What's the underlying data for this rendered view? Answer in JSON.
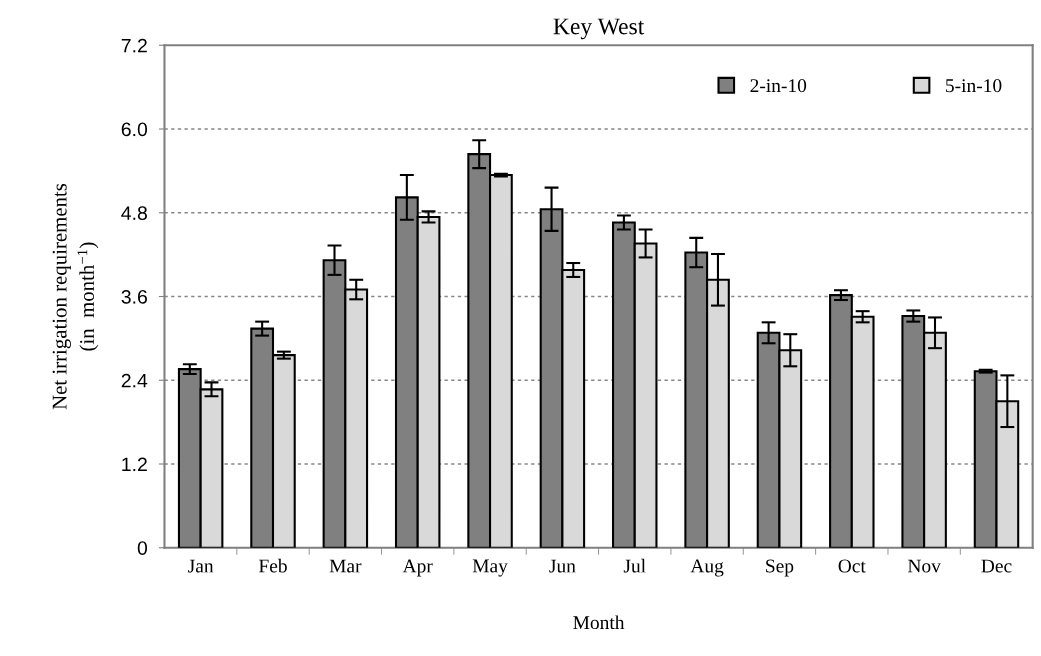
{
  "chart_data": {
    "type": "bar",
    "title": "Key West",
    "xlabel": "Month",
    "ylabel": "Net irrigation requirements\n(in  month$^{−1}$)",
    "categories": [
      "Jan",
      "Feb",
      "Mar",
      "Apr",
      "May",
      "Jun",
      "Jul",
      "Aug",
      "Sep",
      "Oct",
      "Nov",
      "Dec"
    ],
    "series": [
      {
        "name": "2-in-10",
        "color": "#808080",
        "values": [
          2.56,
          3.14,
          4.12,
          5.02,
          5.64,
          4.85,
          4.66,
          4.23,
          3.08,
          3.62,
          3.32,
          2.53
        ],
        "errors": [
          0.07,
          0.1,
          0.21,
          0.32,
          0.2,
          0.31,
          0.1,
          0.21,
          0.15,
          0.07,
          0.08,
          0.02
        ]
      },
      {
        "name": "5-in-10",
        "color": "#d9d9d9",
        "values": [
          2.27,
          2.76,
          3.7,
          4.74,
          5.34,
          3.98,
          4.36,
          3.84,
          2.83,
          3.31,
          3.08,
          2.1
        ],
        "errors": [
          0.1,
          0.05,
          0.14,
          0.08,
          0.02,
          0.1,
          0.2,
          0.37,
          0.23,
          0.08,
          0.22,
          0.37
        ]
      }
    ],
    "ylim": [
      0,
      7.2
    ],
    "yticks": [
      0,
      1.2,
      2.4,
      3.6,
      4.8,
      {
        "value": 6,
        "label": "6.0"
      },
      7.2
    ],
    "grid": "y",
    "legend": "top right"
  }
}
